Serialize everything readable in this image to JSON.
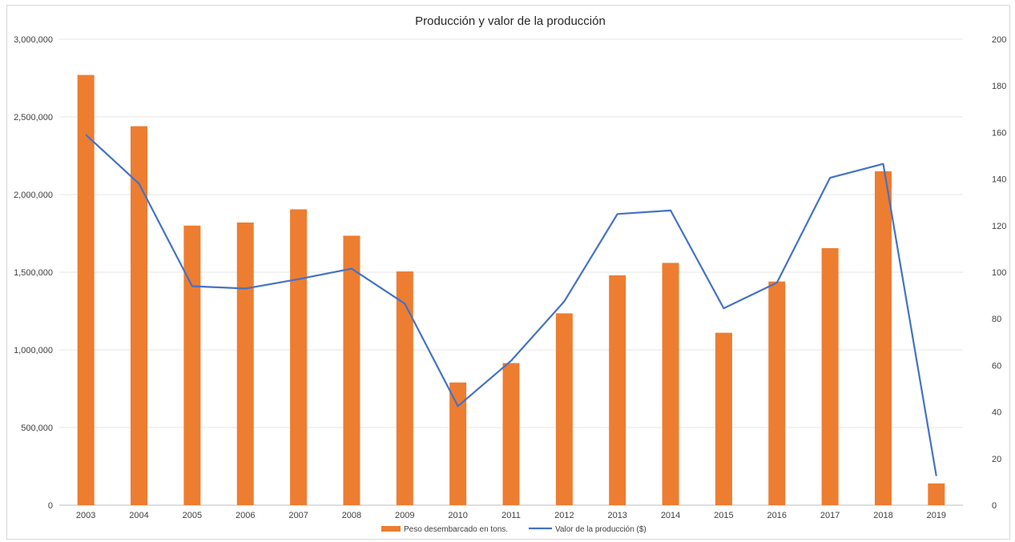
{
  "chart_data": {
    "type": "bar",
    "title": "Producción y valor de la producción",
    "categories": [
      "2003",
      "2004",
      "2005",
      "2006",
      "2007",
      "2008",
      "2009",
      "2010",
      "2011",
      "2012",
      "2013",
      "2014",
      "2015",
      "2016",
      "2017",
      "2018",
      "2019"
    ],
    "series": [
      {
        "name": "Peso desembarcado en tons.",
        "type": "bar",
        "axis": "left",
        "color": "#ED7D31",
        "values": [
          2770000,
          2440000,
          1800000,
          1820000,
          1905000,
          1735000,
          1505000,
          790000,
          915000,
          1235000,
          1480000,
          1560000,
          1110000,
          1440000,
          1655000,
          2150000,
          140000
        ]
      },
      {
        "name": "Valor de la producción ($)",
        "type": "line",
        "axis": "right",
        "color": "#4472C4",
        "values": [
          159,
          138,
          94,
          93,
          97,
          101.5,
          86.5,
          42.5,
          62,
          87.5,
          125,
          126.5,
          84.5,
          95.5,
          140.5,
          146.5,
          12.5
        ]
      }
    ],
    "y_left": {
      "min": 0,
      "max": 3000000,
      "ticks": [
        0,
        500000,
        1000000,
        1500000,
        2000000,
        2500000,
        3000000
      ],
      "tick_labels": [
        "0",
        "500,000",
        "1,000,000",
        "1,500,000",
        "2,000,000",
        "2,500,000",
        "3,000,000"
      ]
    },
    "y_right": {
      "min": 0,
      "max": 200,
      "ticks": [
        0,
        20,
        40,
        60,
        80,
        100,
        120,
        140,
        160,
        180,
        200
      ],
      "tick_labels": [
        "0",
        "20",
        "40",
        "60",
        "80",
        "100",
        "120",
        "140",
        "160",
        "180",
        "200"
      ]
    },
    "grid": true,
    "legend_position": "bottom",
    "legend": [
      {
        "label": "Peso desembarcado en tons.",
        "kind": "bar",
        "color": "#ED7D31"
      },
      {
        "label": "Valor de la producción ($)",
        "kind": "line",
        "color": "#4472C4"
      }
    ],
    "gridline_color": "#e6e6e6"
  }
}
